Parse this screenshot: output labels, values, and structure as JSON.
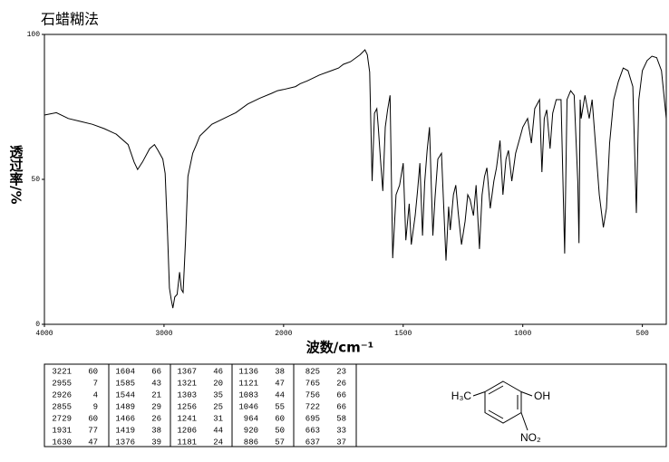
{
  "chart_data": {
    "type": "line",
    "title": "石蜡糊法",
    "xlabel": "波数/cm⁻¹",
    "ylabel": "透过率/%",
    "x": [
      4000,
      3900,
      3800,
      3700,
      3600,
      3500,
      3400,
      3300,
      3250,
      3221,
      3180,
      3120,
      3080,
      3050,
      3010,
      2990,
      2970,
      2955,
      2940,
      2926,
      2910,
      2890,
      2870,
      2855,
      2840,
      2820,
      2800,
      2760,
      2729,
      2700,
      2650,
      2600,
      2500,
      2400,
      2300,
      2200,
      2100,
      2050,
      2000,
      1950,
      1931,
      1900,
      1850,
      1800,
      1770,
      1750,
      1720,
      1680,
      1660,
      1650,
      1640,
      1630,
      1620,
      1610,
      1604,
      1595,
      1585,
      1575,
      1565,
      1555,
      1544,
      1530,
      1515,
      1500,
      1489,
      1475,
      1466,
      1450,
      1440,
      1430,
      1419,
      1410,
      1400,
      1390,
      1376,
      1367,
      1355,
      1340,
      1321,
      1310,
      1303,
      1290,
      1280,
      1270,
      1256,
      1241,
      1230,
      1220,
      1206,
      1195,
      1181,
      1170,
      1160,
      1150,
      1136,
      1121,
      1110,
      1095,
      1083,
      1070,
      1060,
      1046,
      1030,
      1010,
      1000,
      980,
      964,
      950,
      930,
      920,
      910,
      900,
      886,
      875,
      860,
      840,
      825,
      815,
      800,
      785,
      770,
      765,
      760,
      756,
      740,
      722,
      710,
      695,
      680,
      663,
      650,
      637,
      620,
      600,
      580,
      560,
      540,
      525,
      515,
      500,
      480,
      460,
      440,
      420,
      400
    ],
    "values": [
      72.2,
      73,
      71,
      70,
      69,
      67.5,
      65.6,
      62,
      56,
      53.4,
      56,
      60.6,
      62,
      60,
      57,
      52,
      30.6,
      12.5,
      8.7,
      5.6,
      9.4,
      10.3,
      18,
      12,
      11,
      29,
      51,
      59,
      62,
      65,
      67,
      69,
      71,
      73,
      76,
      78,
      79.7,
      80.6,
      81,
      82,
      83,
      84,
      86,
      87.5,
      88.4,
      89.7,
      90.6,
      93,
      94.7,
      93,
      87,
      49.4,
      72.8,
      74.4,
      68,
      57,
      46,
      68,
      74,
      79,
      22.8,
      44.7,
      48,
      55.6,
      29,
      41.6,
      27.5,
      37.5,
      46,
      55.6,
      30.6,
      49,
      60,
      68,
      30.6,
      43.7,
      57,
      59,
      22,
      40.6,
      32.5,
      44.7,
      48,
      38.4,
      27.5,
      35.6,
      44.7,
      43,
      37.5,
      48,
      26,
      44.7,
      51,
      54,
      40,
      49.4,
      54,
      63.4,
      44.7,
      57,
      60,
      49.4,
      59,
      65,
      68,
      71,
      62.5,
      74.4,
      77.5,
      52.5,
      71,
      74,
      60.6,
      72.8,
      77.5,
      77.5,
      24.4,
      77.5,
      80.6,
      79,
      49,
      28,
      77.5,
      71,
      79,
      71,
      77.5,
      61,
      44.7,
      33.4,
      40,
      62.5,
      77.5,
      83.8,
      88.4,
      87.5,
      82,
      38.4,
      77.5,
      87.5,
      91,
      92.5,
      92,
      87.5,
      71
    ],
    "color": "#000000",
    "xlim": [
      4000,
      400
    ],
    "xticks": [
      4000,
      3000,
      2000,
      1500,
      1000,
      500
    ],
    "ylim": [
      0,
      100
    ],
    "yticks": [
      0,
      50,
      100
    ]
  },
  "peak_table": {
    "columns": [
      [
        [
          3221,
          60
        ],
        [
          2955,
          7
        ],
        [
          2926,
          4
        ],
        [
          2855,
          9
        ],
        [
          2729,
          60
        ],
        [
          1931,
          77
        ],
        [
          1630,
          47
        ]
      ],
      [
        [
          1604,
          66
        ],
        [
          1585,
          43
        ],
        [
          1544,
          21
        ],
        [
          1489,
          29
        ],
        [
          1466,
          26
        ],
        [
          1419,
          38
        ],
        [
          1376,
          39
        ]
      ],
      [
        [
          1367,
          46
        ],
        [
          1321,
          20
        ],
        [
          1303,
          35
        ],
        [
          1256,
          25
        ],
        [
          1241,
          31
        ],
        [
          1206,
          44
        ],
        [
          1181,
          24
        ]
      ],
      [
        [
          1136,
          38
        ],
        [
          1121,
          47
        ],
        [
          1083,
          44
        ],
        [
          1046,
          55
        ],
        [
          964,
          60
        ],
        [
          920,
          50
        ],
        [
          886,
          57
        ]
      ],
      [
        [
          825,
          23
        ],
        [
          765,
          26
        ],
        [
          756,
          66
        ],
        [
          722,
          66
        ],
        [
          695,
          58
        ],
        [
          663,
          33
        ],
        [
          637,
          37
        ]
      ]
    ]
  },
  "structure": {
    "labels": [
      "H₃C",
      "OH",
      "NO₂"
    ]
  }
}
